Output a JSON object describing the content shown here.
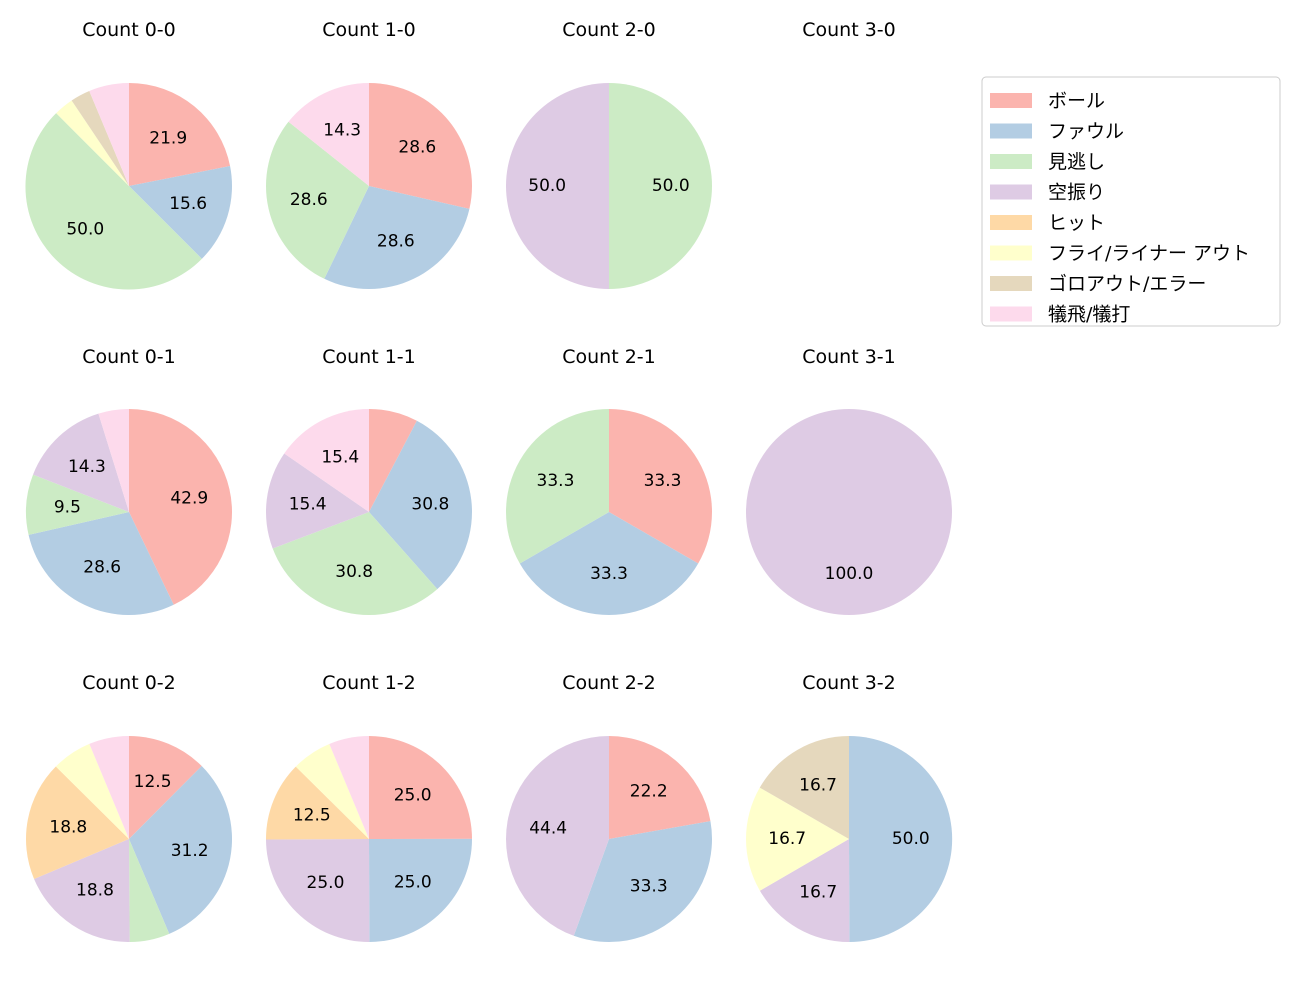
{
  "chart_data": {
    "type": "pie",
    "legend_position": "right",
    "categories": [
      "ボール",
      "ファウル",
      "見逃し",
      "空振り",
      "ヒット",
      "フライ/ライナー アウト",
      "ゴロアウト/エラー",
      "犠飛/犠打"
    ],
    "colors": [
      "#fbb4ae",
      "#b3cde3",
      "#ccebc5",
      "#decbe4",
      "#fed9a6",
      "#ffffcc",
      "#e5d8bd",
      "#fddaec"
    ],
    "charts": [
      {
        "title": "Count 0-0",
        "values": [
          21.9,
          15.6,
          50.0,
          0,
          0,
          3.1,
          3.1,
          6.3
        ]
      },
      {
        "title": "Count 1-0",
        "values": [
          28.6,
          28.6,
          28.6,
          0,
          0,
          0,
          0,
          14.3
        ]
      },
      {
        "title": "Count 2-0",
        "values": [
          0,
          0,
          50.0,
          50.0,
          0,
          0,
          0,
          0
        ]
      },
      {
        "title": "Count 3-0",
        "values": []
      },
      {
        "title": "Count 0-1",
        "values": [
          42.9,
          28.6,
          9.5,
          14.3,
          0,
          0,
          0,
          4.8
        ]
      },
      {
        "title": "Count 1-1",
        "values": [
          7.7,
          30.8,
          30.8,
          15.4,
          0,
          0,
          0,
          15.4
        ]
      },
      {
        "title": "Count 2-1",
        "values": [
          33.3,
          33.3,
          33.3,
          0,
          0,
          0,
          0,
          0
        ]
      },
      {
        "title": "Count 3-1",
        "values": [
          0,
          0,
          0,
          100.0,
          0,
          0,
          0,
          0
        ]
      },
      {
        "title": "Count 0-2",
        "values": [
          12.5,
          31.2,
          6.3,
          18.8,
          18.8,
          6.3,
          0,
          6.3
        ]
      },
      {
        "title": "Count 1-2",
        "values": [
          25.0,
          25.0,
          0,
          25.0,
          12.5,
          6.3,
          0,
          6.3
        ]
      },
      {
        "title": "Count 2-2",
        "values": [
          22.2,
          33.3,
          0,
          44.4,
          0,
          0,
          0,
          0
        ]
      },
      {
        "title": "Count 3-2",
        "values": [
          0,
          50.0,
          0,
          16.7,
          0,
          16.7,
          16.7,
          0
        ]
      }
    ]
  }
}
